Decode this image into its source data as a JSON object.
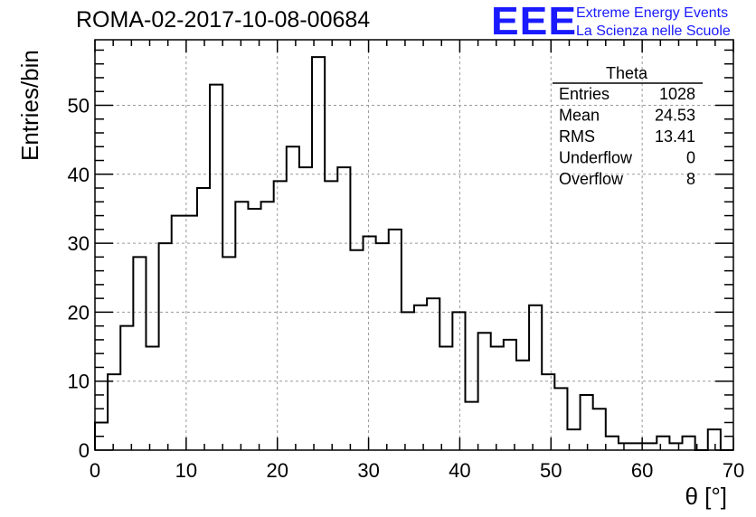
{
  "header": {
    "title": "ROMA-02-2017-10-08-00684"
  },
  "logo": {
    "letters": "EEE",
    "line1": "Extreme Energy Events",
    "line2": "La Scienza nelle Scuole",
    "color": "#1a1aff"
  },
  "stats_box": {
    "name": "Theta",
    "rows": [
      {
        "label": "Entries",
        "value": "1028"
      },
      {
        "label": "Mean",
        "value": "24.53"
      },
      {
        "label": "RMS",
        "value": "13.41"
      },
      {
        "label": "Underflow",
        "value": "0"
      },
      {
        "label": "Overflow",
        "value": "8"
      }
    ]
  },
  "chart_data": {
    "type": "bar",
    "style": "step-histogram",
    "title": "ROMA-02-2017-10-08-00684",
    "xlabel": "θ [°]",
    "ylabel": "Entries/bin",
    "xlim": [
      0,
      70
    ],
    "ylim": [
      0,
      59.5
    ],
    "bin_width": 1.4,
    "bin_edges_start": 0,
    "grid": true,
    "x_ticks": [
      0,
      10,
      20,
      30,
      40,
      50,
      60,
      70
    ],
    "y_ticks": [
      0,
      10,
      20,
      30,
      40,
      50
    ],
    "values": [
      4,
      11,
      18,
      28,
      15,
      30,
      34,
      34,
      38,
      53,
      28,
      36,
      35,
      36,
      39,
      44,
      41,
      57,
      39,
      41,
      29,
      31,
      30,
      32,
      20,
      21,
      22,
      15,
      20,
      7,
      17,
      15,
      16,
      13,
      21,
      11,
      9,
      3,
      8,
      6,
      2,
      1,
      1,
      1,
      2,
      1,
      2,
      0,
      3,
      0
    ],
    "line_color": "#000000",
    "grid_color": "#999999"
  }
}
